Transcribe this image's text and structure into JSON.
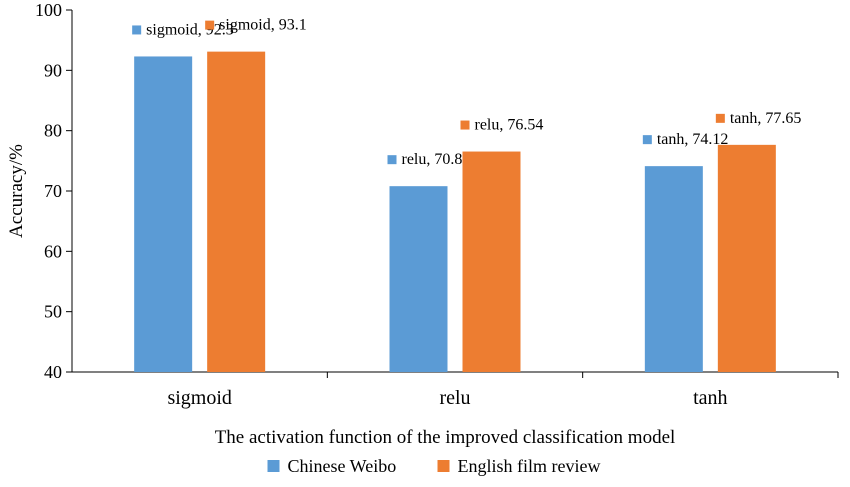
{
  "chart_data": {
    "type": "bar",
    "title": "",
    "xlabel": "The activation function of the improved classification model",
    "ylabel": "Accuracy/%",
    "ylim": [
      40,
      100
    ],
    "yticks": [
      40,
      50,
      60,
      70,
      80,
      90,
      100
    ],
    "categories": [
      "sigmoid",
      "relu",
      "tanh"
    ],
    "series": [
      {
        "name": "Chinese Weibo",
        "color": "#5B9BD5",
        "values": [
          92.3,
          70.8,
          74.12
        ],
        "labels": [
          "sigmoid, 92.3",
          "relu, 70.8",
          "tanh, 74.12"
        ]
      },
      {
        "name": "English film review",
        "color": "#ED7D31",
        "values": [
          93.1,
          76.54,
          77.65
        ],
        "labels": [
          "sigmoid, 93.1",
          "relu, 76.54",
          "tanh, 77.65"
        ]
      }
    ],
    "grid": false,
    "legend_position": "bottom"
  }
}
